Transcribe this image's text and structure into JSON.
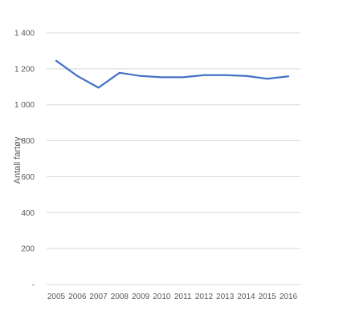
{
  "chart_data": {
    "type": "line",
    "x": [
      "2005",
      "2006",
      "2007",
      "2008",
      "2009",
      "2010",
      "2011",
      "2012",
      "2013",
      "2014",
      "2015",
      "2016"
    ],
    "series": [
      {
        "values": [
          1245,
          1160,
          1095,
          1178,
          1160,
          1153,
          1153,
          1165,
          1165,
          1160,
          1145,
          1158
        ]
      }
    ],
    "ylabel": "Antall fartøy",
    "ylim": [
      0,
      1400
    ],
    "yticks": [
      {
        "value": 0,
        "label": "-"
      },
      {
        "value": 200,
        "label": "200"
      },
      {
        "value": 400,
        "label": "400"
      },
      {
        "value": 600,
        "label": "600"
      },
      {
        "value": 800,
        "label": "800"
      },
      {
        "value": 1000,
        "label": "1 000"
      },
      {
        "value": 1200,
        "label": "1 200"
      },
      {
        "value": 1400,
        "label": "1 400"
      }
    ],
    "grid": true,
    "line_color": "#4472c4",
    "grid_color": "#d9d9d9"
  }
}
